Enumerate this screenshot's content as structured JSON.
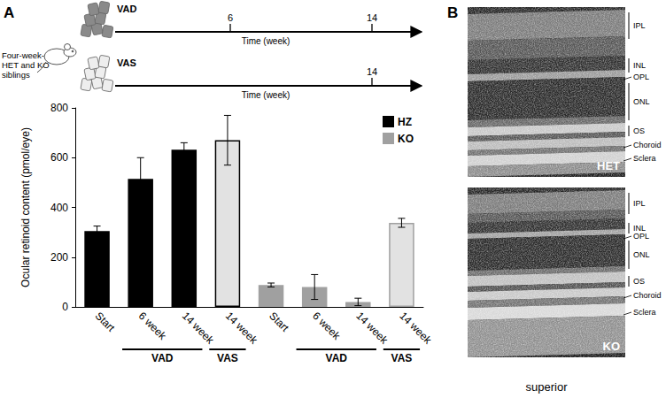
{
  "panel_labels": [
    "A",
    "B"
  ],
  "timeline": {
    "cohort": "Four-week-old HET and KO siblings",
    "axis_label": "Time (week)",
    "diets": [
      {
        "label": "VAD",
        "ticks": [
          6,
          14
        ]
      },
      {
        "label": "VAS",
        "ticks": [
          14
        ]
      }
    ]
  },
  "chart_data": {
    "type": "bar",
    "y_label": "Ocular retinoid content (pmol/eye)",
    "categories": [
      "Start",
      "6 week",
      "14 week",
      "14 week",
      "Start",
      "6 week",
      "14 week",
      "14 week"
    ],
    "groups": [
      {
        "label": "VAD",
        "from": 1,
        "to": 2
      },
      {
        "label": "VAS",
        "from": 3,
        "to": 3
      },
      {
        "label": "VAD",
        "from": 5,
        "to": 6
      },
      {
        "label": "VAS",
        "from": 7,
        "to": 7
      }
    ],
    "series": [
      {
        "name": "HZ",
        "color": "#000000",
        "colors": [
          "#000000",
          "#000000",
          "#000000",
          "#e2e2e2",
          null,
          null,
          null,
          null
        ],
        "values": [
          305,
          515,
          632,
          670,
          null,
          null,
          null,
          null
        ],
        "errors": [
          20,
          85,
          28,
          100,
          null,
          null,
          null,
          null
        ]
      },
      {
        "name": "KO",
        "color": "#a0a0a0",
        "colors": [
          null,
          null,
          null,
          null,
          "#a0a0a0",
          "#a0a0a0",
          "#a0a0a0",
          "#e2e2e2"
        ],
        "values": [
          null,
          null,
          null,
          null,
          88,
          80,
          20,
          338
        ],
        "errors": [
          null,
          null,
          null,
          null,
          8,
          50,
          15,
          18
        ]
      }
    ],
    "ylim": [
      0,
      800
    ],
    "yticks": [
      0,
      200,
      400,
      600,
      800
    ],
    "grid": false,
    "legend": "top-right",
    "data_labels": false
  },
  "images": {
    "panels": [
      {
        "label": "HET"
      },
      {
        "label": "KO"
      }
    ],
    "layers": [
      "IPL",
      "INL",
      "OPL",
      "ONL",
      "OS",
      "Choroid",
      "Sclera"
    ],
    "caption": "superior"
  }
}
